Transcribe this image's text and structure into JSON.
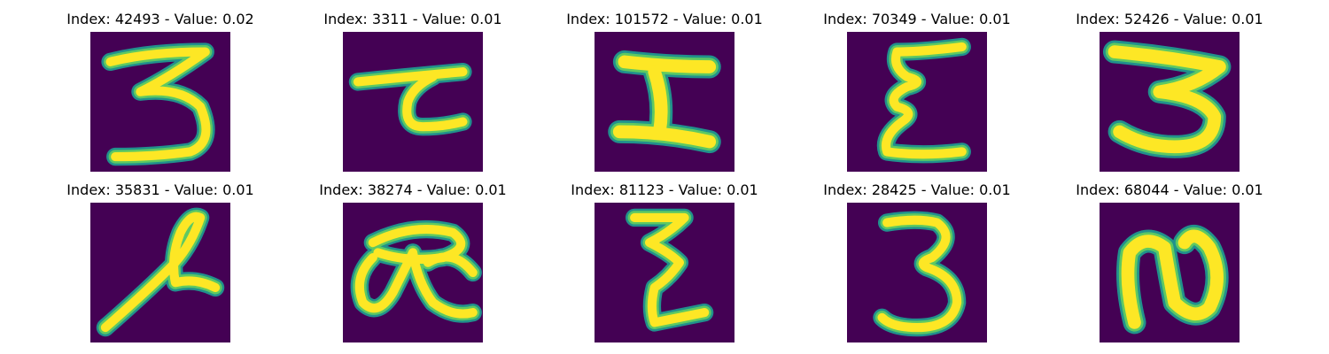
{
  "colors": {
    "background": "#440154",
    "stroke_outer": "#21918c",
    "stroke_mid": "#5ec962",
    "stroke_core": "#fde725"
  },
  "panels": [
    {
      "title": "Index: 42493 - Value: 0.02",
      "glyph": "digit-three-open-top"
    },
    {
      "title": "Index: 3311 - Value: 0.01",
      "glyph": "character-bar-hook"
    },
    {
      "title": "Index: 101572 - Value: 0.01",
      "glyph": "character-bold-i-shape"
    },
    {
      "title": "Index: 70349 - Value: 0.01",
      "glyph": "character-epsilon"
    },
    {
      "title": "Index: 52426 - Value: 0.01",
      "glyph": "digit-three-bold"
    },
    {
      "title": "Index: 35831 - Value: 0.01",
      "glyph": "character-slanted-loop"
    },
    {
      "title": "Index: 38274 - Value: 0.01",
      "glyph": "character-double-loop"
    },
    {
      "title": "Index: 81123 - Value: 0.01",
      "glyph": "character-zigzag"
    },
    {
      "title": "Index: 28425 - Value: 0.01",
      "glyph": "digit-three"
    },
    {
      "title": "Index: 68044 - Value: 0.01",
      "glyph": "character-n-loop"
    }
  ]
}
